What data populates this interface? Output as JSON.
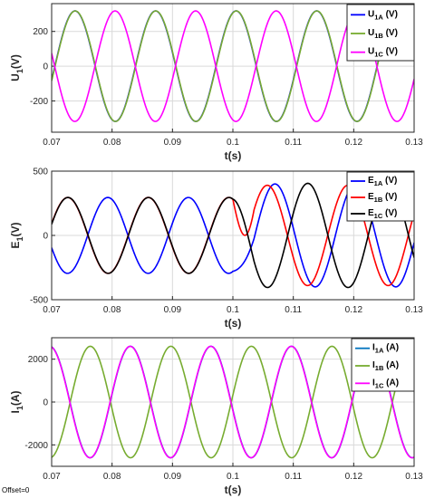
{
  "footer": {
    "offset_label": "Offset=0"
  },
  "chart_data": [
    {
      "type": "line",
      "xlabel": "t(s)",
      "ylabel": {
        "main": "U",
        "sub": "1",
        "suffix": "(V)"
      },
      "xlim": [
        0.07,
        0.13
      ],
      "ylim": [
        -380,
        360
      ],
      "xticks": [
        0.07,
        0.08,
        0.09,
        0.1,
        0.11,
        0.12,
        0.13
      ],
      "xtick_labels": [
        "0.07",
        "0.08",
        "0.09",
        "0.1",
        "0.11",
        "0.12",
        "0.13"
      ],
      "yticks": [
        -200,
        0,
        200
      ],
      "ytick_labels": [
        "-200",
        "0",
        "200"
      ],
      "grid": true,
      "legend_position": "top-right",
      "frequency_hz": 75,
      "series": [
        {
          "name": {
            "main": "U",
            "sub": "1A",
            "suffix": " (V)"
          },
          "color": "#0000ff",
          "amplitude": 318,
          "peak_time": 0.0872
        },
        {
          "name": {
            "main": "U",
            "sub": "1B",
            "suffix": " (V)"
          },
          "color": "#77ac30",
          "amplitude": 318,
          "peak_time": 0.0739
        },
        {
          "name": {
            "main": "U",
            "sub": "1C",
            "suffix": " (V)"
          },
          "color": "#ff00ff",
          "amplitude": 318,
          "peak_time": 0.0805
        }
      ]
    },
    {
      "type": "line",
      "xlabel": "t(s)",
      "ylabel": {
        "main": "E",
        "sub": "1",
        "suffix": "(V)"
      },
      "xlim": [
        0.07,
        0.13
      ],
      "ylim": [
        -500,
        500
      ],
      "xticks": [
        0.07,
        0.08,
        0.09,
        0.1,
        0.11,
        0.12,
        0.13
      ],
      "xtick_labels": [
        "0.07",
        "0.08",
        "0.09",
        "0.1",
        "0.11",
        "0.12",
        "0.13"
      ],
      "yticks": [
        -500,
        0,
        500
      ],
      "ytick_labels": [
        "-500",
        "0",
        "500"
      ],
      "grid": true,
      "legend_position": "top-right",
      "frequency_hz": 75,
      "transition_time": 0.1,
      "series": [
        {
          "name": {
            "main": "E",
            "sub": "1A",
            "suffix": " (V)"
          },
          "color": "#0000ff",
          "amp_before": 295,
          "peak_before": 0.0793,
          "amp_after": 400,
          "peak_after": 0.1203
        },
        {
          "name": {
            "main": "E",
            "sub": "1B",
            "suffix": " (V)"
          },
          "color": "#ff0000",
          "amp_before": 295,
          "peak_before": 0.086,
          "amp_after": 390,
          "peak_after": 0.1057
        },
        {
          "name": {
            "main": "E",
            "sub": "1C",
            "suffix": " (V)"
          },
          "color": "#000000",
          "amp_before": 295,
          "peak_before": 0.0727,
          "amp_after": 405,
          "peak_after": 0.1124
        }
      ]
    },
    {
      "type": "line",
      "xlabel": "t(s)",
      "ylabel": {
        "main": "I",
        "sub": "1",
        "suffix": "(A)"
      },
      "xlim": [
        0.07,
        0.13
      ],
      "ylim": [
        -3000,
        3000
      ],
      "xticks": [
        0.07,
        0.08,
        0.09,
        0.1,
        0.11,
        0.12,
        0.13
      ],
      "xtick_labels": [
        "0.07",
        "0.08",
        "0.09",
        "0.1",
        "0.11",
        "0.12",
        "0.13"
      ],
      "yticks": [
        -2000,
        0,
        2000
      ],
      "ytick_labels": [
        "-2000",
        "0",
        "2000"
      ],
      "grid": true,
      "legend_position": "top-right",
      "frequency_hz": 75,
      "series": [
        {
          "name": {
            "main": "I",
            "sub": "1A",
            "suffix": " (A)"
          },
          "color": "#0072bd",
          "amplitude": 2600,
          "peak_time": 0.0697
        },
        {
          "name": {
            "main": "I",
            "sub": "1B",
            "suffix": " (A)"
          },
          "color": "#77ac30",
          "amplitude": 2600,
          "peak_time": 0.0764
        },
        {
          "name": {
            "main": "I",
            "sub": "1C",
            "suffix": " (A)"
          },
          "color": "#ff00ff",
          "amplitude": 2600,
          "peak_time": 0.083
        }
      ]
    }
  ]
}
